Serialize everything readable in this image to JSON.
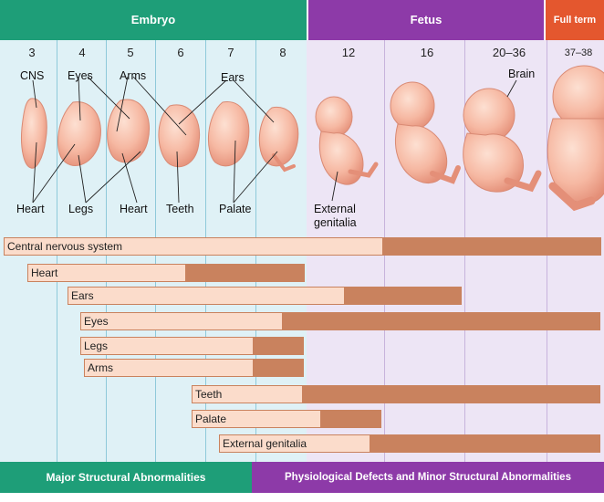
{
  "header": {
    "embryo": "Embryo",
    "fetus": "Fetus",
    "full_term": "Full term"
  },
  "weeks": [
    "3",
    "4",
    "5",
    "6",
    "7",
    "8",
    "12",
    "16",
    "20–36",
    "37–38"
  ],
  "labels": {
    "cns": "CNS",
    "eyes": "Eyes",
    "arms": "Arms",
    "ears": "Ears",
    "brain": "Brain",
    "heart_left": "Heart",
    "legs": "Legs",
    "heart_right": "Heart",
    "teeth": "Teeth",
    "palate": "Palate",
    "external_genitalia_line1": "External",
    "external_genitalia_line2": "genitalia"
  },
  "bars": [
    {
      "label": "Central nervous system"
    },
    {
      "label": "Heart"
    },
    {
      "label": "Ears"
    },
    {
      "label": "Eyes"
    },
    {
      "label": "Legs"
    },
    {
      "label": "Arms"
    },
    {
      "label": "Teeth"
    },
    {
      "label": "Palate"
    },
    {
      "label": "External genitalia"
    }
  ],
  "footer": {
    "major": "Major Structural Abnormalities",
    "minor": "Physiological Defects and Minor Structural Abnormalities"
  },
  "colors": {
    "embryo_header": "#1e9e78",
    "fetus_header": "#8d3aa8",
    "full_term_header": "#e4572e",
    "embryo_bg": "#dff1f6",
    "fetus_bg": "#ede5f5",
    "bar_light": "#fbdccb",
    "bar_dark": "#c9825e",
    "skin": "#f6b8a2"
  }
}
